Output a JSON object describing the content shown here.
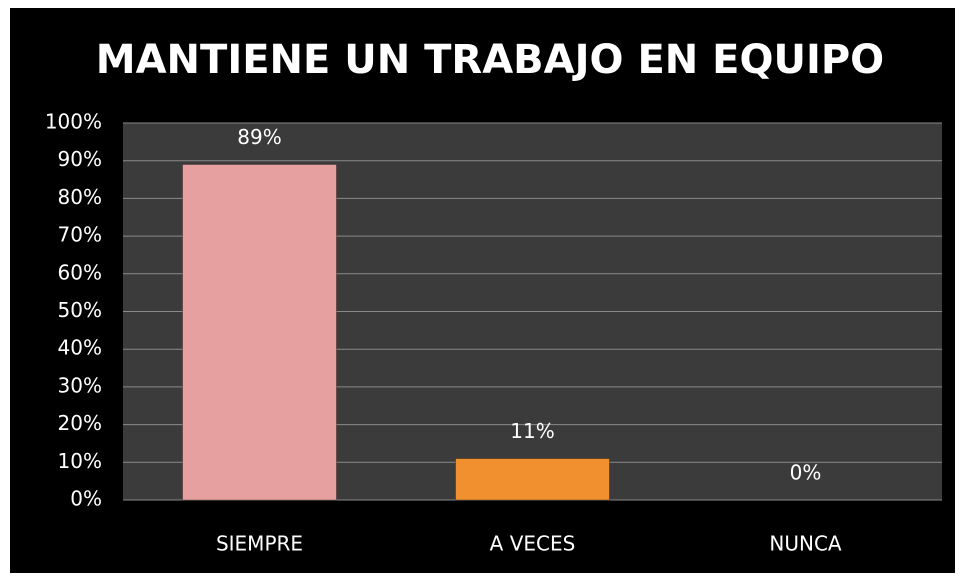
{
  "chart_data": {
    "type": "bar",
    "title": "MANTIENE UN TRABAJO EN EQUIPO",
    "categories": [
      "SIEMPRE",
      "A VECES",
      "NUNCA"
    ],
    "values": [
      89,
      11,
      0
    ],
    "value_labels": [
      "89%",
      "11%",
      "0%"
    ],
    "colors": [
      "#e6a0a0",
      "#f0902e",
      "#9bbb59"
    ],
    "ylim": [
      0,
      100
    ],
    "yticks": [
      {
        "value": 0,
        "label": "0%"
      },
      {
        "value": 10,
        "label": "10%"
      },
      {
        "value": 20,
        "label": "20%"
      },
      {
        "value": 30,
        "label": "30%"
      },
      {
        "value": 40,
        "label": "40%"
      },
      {
        "value": 50,
        "label": "50%"
      },
      {
        "value": 60,
        "label": "60%"
      },
      {
        "value": 70,
        "label": "70%"
      },
      {
        "value": 80,
        "label": "80%"
      },
      {
        "value": 90,
        "label": "90%"
      },
      {
        "value": 100,
        "label": "100%"
      }
    ],
    "grid": true
  }
}
